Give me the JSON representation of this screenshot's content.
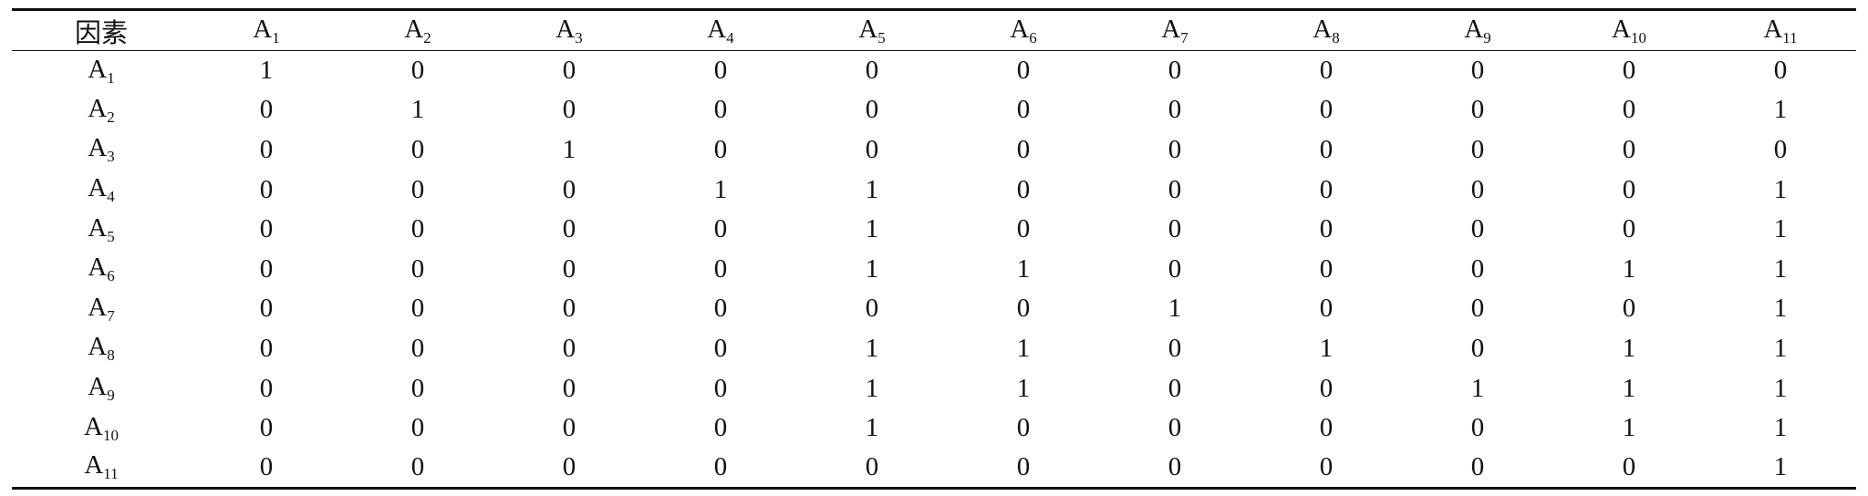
{
  "table": {
    "header": [
      {
        "text": "因素"
      },
      {
        "text": "A",
        "sub": "1"
      },
      {
        "text": "A",
        "sub": "2"
      },
      {
        "text": "A",
        "sub": "3"
      },
      {
        "text": "A",
        "sub": "4"
      },
      {
        "text": "A",
        "sub": "5"
      },
      {
        "text": "A",
        "sub": "6"
      },
      {
        "text": "A",
        "sub": "7"
      },
      {
        "text": "A",
        "sub": "8"
      },
      {
        "text": "A",
        "sub": "9"
      },
      {
        "text": "A",
        "sub": "10"
      },
      {
        "text": "A",
        "sub": "11"
      }
    ],
    "rows": [
      {
        "label": {
          "text": "A",
          "sub": "1"
        },
        "values": [
          1,
          0,
          0,
          0,
          0,
          0,
          0,
          0,
          0,
          0,
          0
        ]
      },
      {
        "label": {
          "text": "A",
          "sub": "2"
        },
        "values": [
          0,
          1,
          0,
          0,
          0,
          0,
          0,
          0,
          0,
          0,
          1
        ]
      },
      {
        "label": {
          "text": "A",
          "sub": "3"
        },
        "values": [
          0,
          0,
          1,
          0,
          0,
          0,
          0,
          0,
          0,
          0,
          0
        ]
      },
      {
        "label": {
          "text": "A",
          "sub": "4"
        },
        "values": [
          0,
          0,
          0,
          1,
          1,
          0,
          0,
          0,
          0,
          0,
          1
        ]
      },
      {
        "label": {
          "text": "A",
          "sub": "5"
        },
        "values": [
          0,
          0,
          0,
          0,
          1,
          0,
          0,
          0,
          0,
          0,
          1
        ]
      },
      {
        "label": {
          "text": "A",
          "sub": "6"
        },
        "values": [
          0,
          0,
          0,
          0,
          1,
          1,
          0,
          0,
          0,
          1,
          1
        ]
      },
      {
        "label": {
          "text": "A",
          "sub": "7"
        },
        "values": [
          0,
          0,
          0,
          0,
          0,
          0,
          1,
          0,
          0,
          0,
          1
        ]
      },
      {
        "label": {
          "text": "A",
          "sub": "8"
        },
        "values": [
          0,
          0,
          0,
          0,
          1,
          1,
          0,
          1,
          0,
          1,
          1
        ]
      },
      {
        "label": {
          "text": "A",
          "sub": "9"
        },
        "values": [
          0,
          0,
          0,
          0,
          1,
          1,
          0,
          0,
          1,
          1,
          1
        ]
      },
      {
        "label": {
          "text": "A",
          "sub": "10"
        },
        "values": [
          0,
          0,
          0,
          0,
          1,
          0,
          0,
          0,
          0,
          1,
          1
        ]
      },
      {
        "label": {
          "text": "A",
          "sub": "11"
        },
        "values": [
          0,
          0,
          0,
          0,
          0,
          0,
          0,
          0,
          0,
          0,
          1
        ]
      }
    ]
  }
}
